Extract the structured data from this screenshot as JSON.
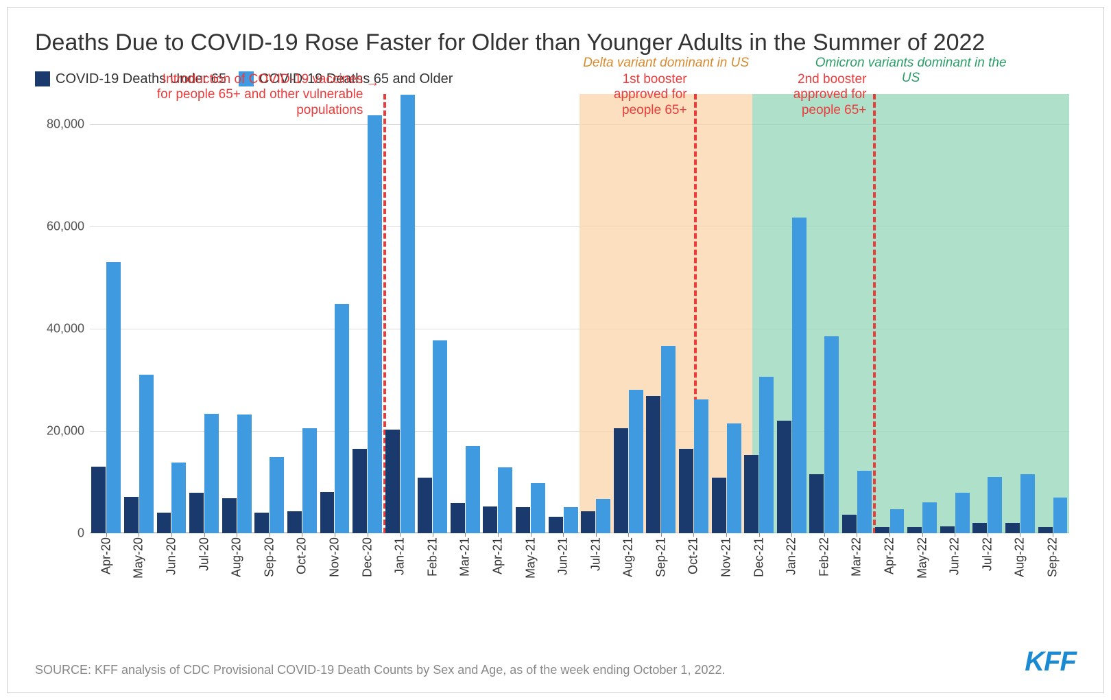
{
  "chart": {
    "type": "grouped-bar",
    "title": "Deaths Due to COVID-19 Rose Faster for Older than Younger Adults in the Summer of 2022",
    "source": "SOURCE: KFF analysis of CDC Provisional COVID-19 Death Counts by Sex and Age, as of the week ending October 1, 2022.",
    "logo_text": "KFF",
    "logo_color": "#1a8ad2",
    "background_color": "#ffffff",
    "border_color": "#d0d0d0",
    "title_fontsize": 34,
    "title_color": "#333333",
    "series": [
      {
        "label": "COVID-19 Deaths Under 65",
        "color": "#1a3a6e"
      },
      {
        "label": "COVID-19 Deaths 65 and Older",
        "color": "#3f9ae0"
      }
    ],
    "y_axis": {
      "min": 0,
      "max": 86000,
      "ticks": [
        0,
        20000,
        40000,
        60000,
        80000
      ],
      "tick_labels": [
        "0",
        "20,000",
        "40,000",
        "60,000",
        "80,000"
      ],
      "grid_color": "#dcdcdc",
      "label_fontsize": 18,
      "label_color": "#555555"
    },
    "x_categories": [
      "Apr-20",
      "May-20",
      "Jun-20",
      "Jul-20",
      "Aug-20",
      "Sep-20",
      "Oct-20",
      "Nov-20",
      "Dec-20",
      "Jan-21",
      "Feb-21",
      "Mar-21",
      "Apr-21",
      "May-21",
      "Jun-21",
      "Jul-21",
      "Aug-21",
      "Sep-21",
      "Oct-21",
      "Nov-21",
      "Dec-21",
      "Jan-22",
      "Feb-22",
      "Mar-22",
      "Apr-22",
      "May-22",
      "Jun-22",
      "Jul-22",
      "Aug-22",
      "Sep-22"
    ],
    "data": {
      "under65": [
        13000,
        7000,
        4000,
        7800,
        6800,
        4000,
        4200,
        8000,
        16500,
        20200,
        10800,
        5800,
        5200,
        5000,
        3200,
        4200,
        20500,
        26800,
        16500,
        10800,
        15200,
        22000,
        11500,
        3500,
        1200,
        1100,
        1300,
        1900,
        1900,
        1100
      ],
      "over65": [
        53000,
        31000,
        13800,
        23300,
        23200,
        14900,
        20500,
        44800,
        81800,
        85800,
        37700,
        17000,
        12800,
        9800,
        5000,
        6600,
        28000,
        36600,
        26200,
        21400,
        30600,
        61800,
        38500,
        12100,
        4700,
        6000,
        7900,
        11000,
        11500,
        6900
      ]
    },
    "regions": [
      {
        "label": "Delta variant dominant in US",
        "color": "#f9d4a8",
        "opacity": 0.75,
        "start_idx": 15,
        "end_idx": 20.3,
        "label_color": "#d88a2e",
        "label_fontstyle": "italic"
      },
      {
        "label": "Omicron variants dominant in the US",
        "color": "#94d6b8",
        "opacity": 0.75,
        "start_idx": 20.3,
        "end_idx": 30,
        "label_color": "#2a9d67",
        "label_fontstyle": "italic"
      }
    ],
    "vlines": [
      {
        "position_idx": 9.0,
        "label": "Introduction of COVID-19 vaccines for people 65+ and other vulnerable populations",
        "color": "#eb3b3b",
        "label_side": "left",
        "arrow": true
      },
      {
        "position_idx": 18.5,
        "label": "1st booster approved for people 65+",
        "color": "#eb3b3b",
        "label_side": "left"
      },
      {
        "position_idx": 24.0,
        "label": "2nd booster approved for people 65+",
        "color": "#eb3b3b",
        "label_side": "left"
      }
    ],
    "annotation_fontsize": 19,
    "annotation_color": "#eb3b3b",
    "x_label_fontsize": 18,
    "bar_width_pct": 44
  }
}
